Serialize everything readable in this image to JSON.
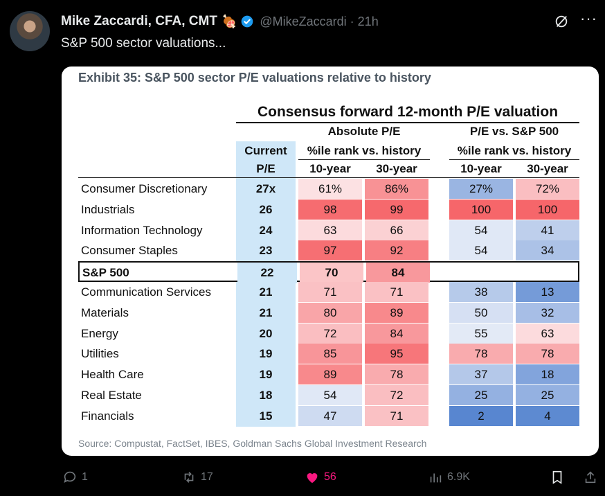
{
  "post": {
    "author_name": "Mike Zaccardi, CFA, CMT",
    "author_emoji": "🍖",
    "handle_time": "@MikeZaccardi · 21h",
    "text": "S&P 500 sector valuations...",
    "replies": "1",
    "reposts": "17",
    "likes": "56",
    "views": "6.9K"
  },
  "colors": {
    "like": "#f91880",
    "verified": "#1d9bf0",
    "muted": "#71767b"
  },
  "exhibit": {
    "title": "Exhibit 35: S&P 500 sector P/E valuations relative to history",
    "source": "Source: Compustat, FactSet, IBES, Goldman Sachs Global Investment Research"
  },
  "table": {
    "title": "Consensus forward 12-month P/E valuation",
    "group_absolute": "Absolute P/E",
    "group_relative": "P/E vs. S&P 500",
    "sub_rank": "%ile rank vs. history",
    "current_line1": "Current",
    "current_line2": "P/E",
    "col_10y": "10-year",
    "col_30y": "30-year",
    "rows": [
      {
        "sector": "Consumer Discretionary",
        "pe": "27x",
        "abs10": "61%",
        "abs30": "86%",
        "rel10": "27%",
        "rel30": "72%"
      },
      {
        "sector": "Industrials",
        "pe": "26",
        "abs10": "98",
        "abs30": "99",
        "rel10": "100",
        "rel30": "100"
      },
      {
        "sector": "Information Technology",
        "pe": "24",
        "abs10": "63",
        "abs30": "66",
        "rel10": "54",
        "rel30": "41"
      },
      {
        "sector": "Consumer Staples",
        "pe": "23",
        "abs10": "97",
        "abs30": "92",
        "rel10": "54",
        "rel30": "34"
      },
      {
        "sector": "S&P 500",
        "pe": "22",
        "abs10": "70",
        "abs30": "84",
        "rel10": "",
        "rel30": ""
      },
      {
        "sector": "Communication Services",
        "pe": "21",
        "abs10": "71",
        "abs30": "71",
        "rel10": "38",
        "rel30": "13"
      },
      {
        "sector": "Materials",
        "pe": "21",
        "abs10": "80",
        "abs30": "89",
        "rel10": "50",
        "rel30": "32"
      },
      {
        "sector": "Energy",
        "pe": "20",
        "abs10": "72",
        "abs30": "84",
        "rel10": "55",
        "rel30": "63"
      },
      {
        "sector": "Utilities",
        "pe": "19",
        "abs10": "85",
        "abs30": "95",
        "rel10": "78",
        "rel30": "78"
      },
      {
        "sector": "Health Care",
        "pe": "19",
        "abs10": "89",
        "abs30": "78",
        "rel10": "37",
        "rel30": "18"
      },
      {
        "sector": "Real Estate",
        "pe": "18",
        "abs10": "54",
        "abs30": "72",
        "rel10": "25",
        "rel30": "25"
      },
      {
        "sector": "Financials",
        "pe": "15",
        "abs10": "47",
        "abs30": "71",
        "rel10": "2",
        "rel30": "4"
      }
    ]
  }
}
